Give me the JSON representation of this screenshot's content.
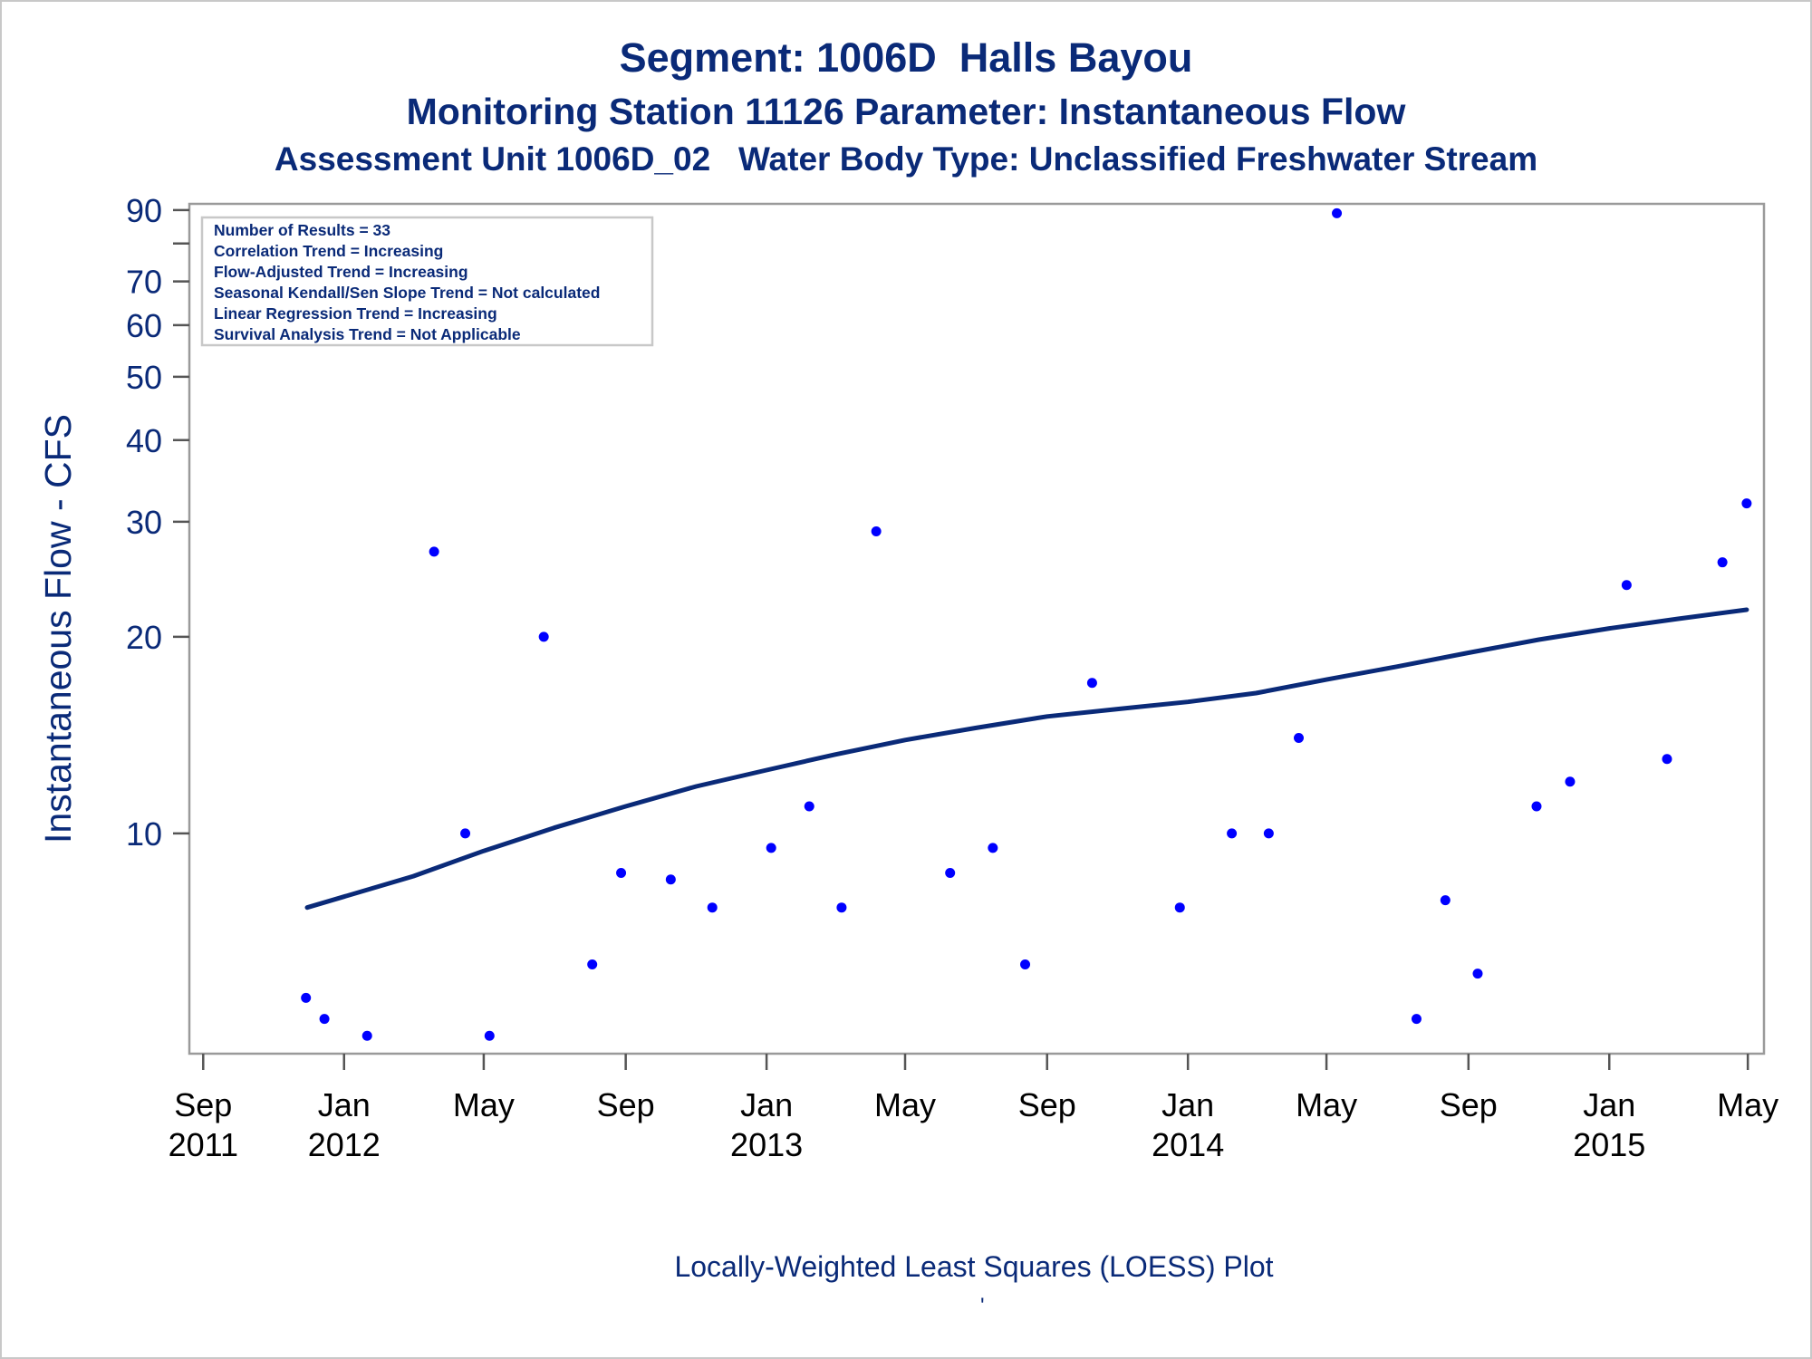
{
  "titles": {
    "line1": "Segment: 1006D  Halls Bayou",
    "line2": "Monitoring Station 11126 Parameter: Instantaneous Flow",
    "line3": "Assessment Unit 1006D_02   Water Body Type: Unclassified Freshwater Stream"
  },
  "footnote": "Locally-Weighted Least Squares (LOESS) Plot",
  "footnote_mark": "'",
  "stats_box": [
    "Number of Results = 33",
    "Correlation Trend = Increasing",
    "Flow-Adjusted Trend = Increasing",
    "Seasonal Kendall/Sen Slope Trend = Not calculated",
    "Linear Regression Trend = Increasing",
    "Survival Analysis Trend = Not Applicable"
  ],
  "colors": {
    "title": "#0a2a78",
    "points": "#0000ff",
    "loess_line": "#0a2a78",
    "axis_tick_text_x": "#000000",
    "axis_frame": "#9a9a9a"
  },
  "chart_data": {
    "type": "scatter",
    "y_scale": "log",
    "ylabel": "Instantaneous Flow - CFS",
    "xlabel": "",
    "ylim": [
      4.6,
      92
    ],
    "xlim": [
      "2011-08-20",
      "2015-05-15"
    ],
    "y_ticks": [
      {
        "value": 10,
        "label": "10"
      },
      {
        "value": 20,
        "label": "20"
      },
      {
        "value": 30,
        "label": "30"
      },
      {
        "value": 40,
        "label": "40"
      },
      {
        "value": 50,
        "label": "50"
      },
      {
        "value": 60,
        "label": "60"
      },
      {
        "value": 70,
        "label": "70"
      },
      {
        "value": 80,
        "label": ""
      },
      {
        "value": 90,
        "label": "90"
      }
    ],
    "x_ticks": [
      {
        "date": "2011-09-01",
        "label": [
          "Sep",
          "2011"
        ]
      },
      {
        "date": "2012-01-01",
        "label": [
          "Jan",
          "2012"
        ]
      },
      {
        "date": "2012-05-01",
        "label": [
          "May",
          ""
        ]
      },
      {
        "date": "2012-09-01",
        "label": [
          "Sep",
          ""
        ]
      },
      {
        "date": "2013-01-01",
        "label": [
          "Jan",
          "2013"
        ]
      },
      {
        "date": "2013-05-01",
        "label": [
          "May",
          ""
        ]
      },
      {
        "date": "2013-09-01",
        "label": [
          "Sep",
          ""
        ]
      },
      {
        "date": "2014-01-01",
        "label": [
          "Jan",
          "2014"
        ]
      },
      {
        "date": "2014-05-01",
        "label": [
          "May",
          ""
        ]
      },
      {
        "date": "2014-09-01",
        "label": [
          "Sep",
          ""
        ]
      },
      {
        "date": "2015-01-01",
        "label": [
          "Jan",
          "2015"
        ]
      },
      {
        "date": "2015-05-01",
        "label": [
          "May",
          ""
        ]
      }
    ],
    "points": [
      {
        "date": "2011-11-29",
        "value": 5.6
      },
      {
        "date": "2011-12-15",
        "value": 5.2
      },
      {
        "date": "2012-01-21",
        "value": 4.9
      },
      {
        "date": "2012-03-19",
        "value": 27
      },
      {
        "date": "2012-04-15",
        "value": 10
      },
      {
        "date": "2012-05-06",
        "value": 4.9
      },
      {
        "date": "2012-06-22",
        "value": 20
      },
      {
        "date": "2012-08-03",
        "value": 6.3
      },
      {
        "date": "2012-08-28",
        "value": 8.7
      },
      {
        "date": "2012-10-10",
        "value": 8.5
      },
      {
        "date": "2012-11-15",
        "value": 7.7
      },
      {
        "date": "2013-01-05",
        "value": 9.5
      },
      {
        "date": "2013-02-07",
        "value": 11
      },
      {
        "date": "2013-03-07",
        "value": 7.7
      },
      {
        "date": "2013-04-06",
        "value": 29
      },
      {
        "date": "2013-06-09",
        "value": 8.7
      },
      {
        "date": "2013-07-16",
        "value": 9.5
      },
      {
        "date": "2013-08-13",
        "value": 6.3
      },
      {
        "date": "2013-10-10",
        "value": 17
      },
      {
        "date": "2013-12-25",
        "value": 7.7
      },
      {
        "date": "2014-02-08",
        "value": 10
      },
      {
        "date": "2014-03-12",
        "value": 10
      },
      {
        "date": "2014-04-07",
        "value": 14
      },
      {
        "date": "2014-05-10",
        "value": 89
      },
      {
        "date": "2014-07-18",
        "value": 5.2
      },
      {
        "date": "2014-08-12",
        "value": 7.9
      },
      {
        "date": "2014-09-09",
        "value": 6.1
      },
      {
        "date": "2014-10-30",
        "value": 11
      },
      {
        "date": "2014-11-28",
        "value": 12
      },
      {
        "date": "2015-01-16",
        "value": 24
      },
      {
        "date": "2015-02-20",
        "value": 13
      },
      {
        "date": "2015-04-09",
        "value": 26
      },
      {
        "date": "2015-04-30",
        "value": 32
      }
    ],
    "loess": [
      {
        "date": "2011-11-30",
        "value": 7.7
      },
      {
        "date": "2012-01-01",
        "value": 8.0
      },
      {
        "date": "2012-03-01",
        "value": 8.6
      },
      {
        "date": "2012-05-01",
        "value": 9.4
      },
      {
        "date": "2012-07-01",
        "value": 10.2
      },
      {
        "date": "2012-09-01",
        "value": 11.0
      },
      {
        "date": "2012-11-01",
        "value": 11.8
      },
      {
        "date": "2013-01-01",
        "value": 12.5
      },
      {
        "date": "2013-03-01",
        "value": 13.2
      },
      {
        "date": "2013-05-01",
        "value": 13.9
      },
      {
        "date": "2013-07-01",
        "value": 14.5
      },
      {
        "date": "2013-09-01",
        "value": 15.1
      },
      {
        "date": "2013-11-01",
        "value": 15.5
      },
      {
        "date": "2014-01-01",
        "value": 15.9
      },
      {
        "date": "2014-03-01",
        "value": 16.4
      },
      {
        "date": "2014-05-01",
        "value": 17.2
      },
      {
        "date": "2014-07-01",
        "value": 18.0
      },
      {
        "date": "2014-09-01",
        "value": 18.9
      },
      {
        "date": "2014-11-01",
        "value": 19.8
      },
      {
        "date": "2015-01-01",
        "value": 20.6
      },
      {
        "date": "2015-03-01",
        "value": 21.3
      },
      {
        "date": "2015-04-30",
        "value": 22.0
      }
    ]
  }
}
